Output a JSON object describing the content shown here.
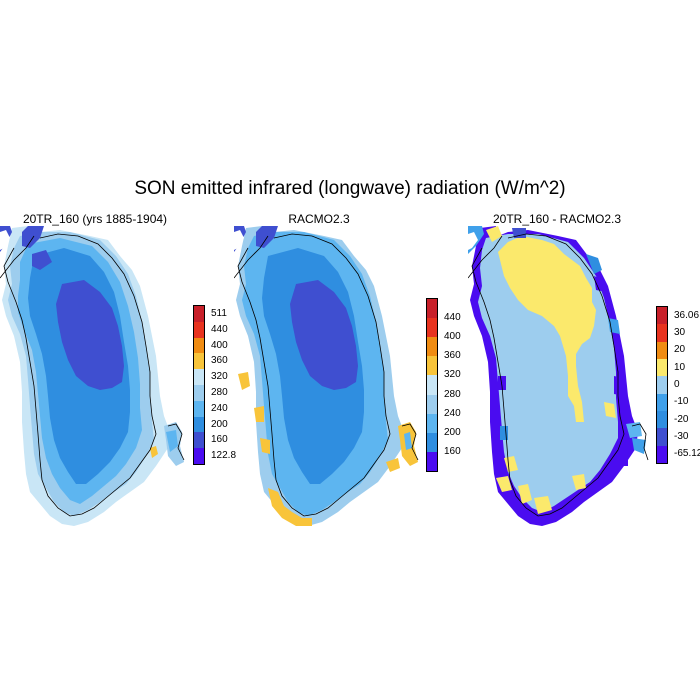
{
  "title": "SON emitted infrared (longwave) radiation (W/m^2)",
  "colors": {
    "dark_purple": "#3f4fd0",
    "mid_blue": "#2f8ee0",
    "light_blue": "#5db5f0",
    "pale_blue": "#9dcdee",
    "very_pale_blue": "#c9e6f6",
    "yellow": "#fbe96c",
    "gold": "#f8c43a",
    "orange": "#f08c12",
    "red": "#e8331f",
    "dark_red": "#c8202a",
    "violet": "#4a0cf0",
    "water_blue": "#3fa0ea"
  },
  "panels": [
    {
      "title": "20TR_160 (yrs 1885-1904)",
      "colorbar": {
        "labels": [
          "511",
          "440",
          "400",
          "360",
          "320",
          "280",
          "240",
          "200",
          "160",
          "122.8"
        ],
        "colors": [
          "#c8202a",
          "#e8331f",
          "#f08c12",
          "#f8c43a",
          "#c9e6f6",
          "#9dcdee",
          "#5db5f0",
          "#2f8ee0",
          "#3f4fd0",
          "#4a0cf0"
        ]
      }
    },
    {
      "title": "RACMO2.3",
      "colorbar": {
        "labels": [
          "440",
          "400",
          "360",
          "320",
          "280",
          "240",
          "200",
          "160"
        ],
        "colors": [
          "#c8202a",
          "#e8331f",
          "#f08c12",
          "#f8c43a",
          "#c9e6f6",
          "#9dcdee",
          "#5db5f0",
          "#2f8ee0",
          "#4a0cf0"
        ]
      }
    },
    {
      "title": "20TR_160 - RACMO2.3",
      "colorbar": {
        "labels": [
          "36.06",
          "30",
          "20",
          "10",
          "0",
          "-10",
          "-20",
          "-30",
          "-65.12"
        ],
        "colors": [
          "#c8202a",
          "#e8331f",
          "#f08c12",
          "#fbe96c",
          "#9dcdee",
          "#3fa0ea",
          "#2f8ee0",
          "#3f4fd0",
          "#4a0cf0"
        ]
      }
    }
  ]
}
